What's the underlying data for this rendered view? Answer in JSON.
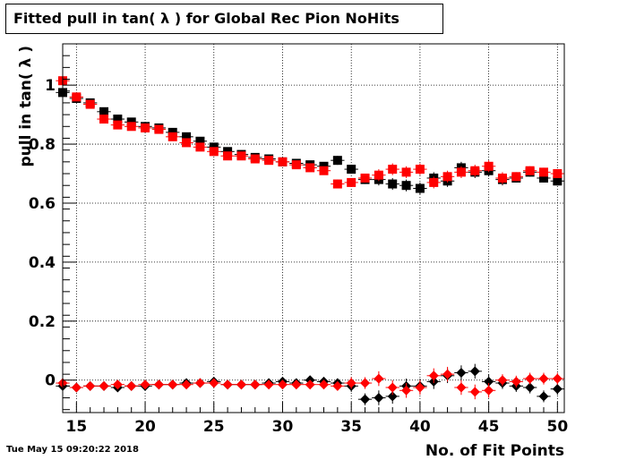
{
  "timestamp": "Tue May 15 09:20:22 2018",
  "chart_data": {
    "type": "scatter",
    "title": "Fitted pull in tan( λ ) for Global Rec Pion NoHits",
    "xlabel": "No. of Fit Points",
    "ylabel": "pull in tan( λ )",
    "xlim": [
      14,
      50.5
    ],
    "ylim": [
      -0.11,
      1.14
    ],
    "xticks": [
      15,
      20,
      25,
      30,
      35,
      40,
      45,
      50
    ],
    "yticks": [
      0,
      0.2,
      0.4,
      0.6,
      0.8,
      1
    ],
    "ytick_labels": [
      "0",
      "0.2",
      "0.4",
      "0.6",
      "0.8",
      "1"
    ],
    "grid": true,
    "x": [
      14,
      15,
      16,
      17,
      18,
      19,
      20,
      21,
      22,
      23,
      24,
      25,
      26,
      27,
      28,
      29,
      30,
      31,
      32,
      33,
      34,
      35,
      36,
      37,
      38,
      39,
      40,
      41,
      42,
      43,
      44,
      45,
      46,
      47,
      48,
      49,
      50
    ],
    "series": [
      {
        "marker": "square",
        "color": "#000000",
        "values": [
          0.975,
          0.955,
          0.94,
          0.91,
          0.885,
          0.875,
          0.86,
          0.855,
          0.84,
          0.825,
          0.81,
          0.79,
          0.775,
          0.765,
          0.755,
          0.75,
          0.74,
          0.735,
          0.73,
          0.725,
          0.745,
          0.715,
          0.68,
          0.68,
          0.665,
          0.66,
          0.65,
          0.685,
          0.675,
          0.72,
          0.705,
          0.71,
          0.68,
          0.685,
          0.705,
          0.685,
          0.675
        ],
        "yerr": [
          0.008,
          0.008,
          0.008,
          0.008,
          0.008,
          0.008,
          0.008,
          0.008,
          0.008,
          0.008,
          0.008,
          0.008,
          0.008,
          0.008,
          0.008,
          0.008,
          0.008,
          0.01,
          0.01,
          0.01,
          0.015,
          0.015,
          0.015,
          0.02,
          0.02,
          0.02,
          0.02,
          0.02,
          0.02,
          0.02,
          0.02,
          0.02,
          0.02,
          0.015,
          0.015,
          0.015,
          0.015
        ]
      },
      {
        "marker": "square",
        "color": "#ff0000",
        "values": [
          1.015,
          0.96,
          0.935,
          0.885,
          0.865,
          0.86,
          0.855,
          0.85,
          0.825,
          0.805,
          0.79,
          0.775,
          0.76,
          0.76,
          0.75,
          0.745,
          0.74,
          0.73,
          0.72,
          0.71,
          0.665,
          0.67,
          0.685,
          0.695,
          0.715,
          0.705,
          0.715,
          0.67,
          0.69,
          0.705,
          0.71,
          0.725,
          0.685,
          0.69,
          0.71,
          0.705,
          0.7
        ],
        "yerr": [
          0.008,
          0.008,
          0.008,
          0.008,
          0.008,
          0.008,
          0.008,
          0.008,
          0.008,
          0.008,
          0.008,
          0.008,
          0.008,
          0.008,
          0.008,
          0.008,
          0.008,
          0.01,
          0.01,
          0.01,
          0.015,
          0.015,
          0.015,
          0.02,
          0.02,
          0.02,
          0.02,
          0.02,
          0.02,
          0.02,
          0.02,
          0.02,
          0.02,
          0.015,
          0.015,
          0.015,
          0.015
        ]
      },
      {
        "marker": "diamond",
        "color": "#000000",
        "values": [
          -0.02,
          -0.025,
          -0.02,
          -0.02,
          -0.025,
          -0.02,
          -0.02,
          -0.015,
          -0.015,
          -0.01,
          -0.01,
          -0.005,
          -0.015,
          -0.015,
          -0.015,
          -0.01,
          -0.005,
          -0.01,
          0,
          -0.005,
          -0.01,
          -0.02,
          -0.065,
          -0.06,
          -0.055,
          -0.02,
          -0.02,
          -0.005,
          0.015,
          0.025,
          0.03,
          -0.005,
          -0.01,
          -0.02,
          -0.025,
          -0.055,
          -0.03
        ],
        "yerr": [
          0.01,
          0.01,
          0.01,
          0.01,
          0.01,
          0.01,
          0.01,
          0.01,
          0.01,
          0.01,
          0.01,
          0.01,
          0.01,
          0.01,
          0.01,
          0.01,
          0.012,
          0.012,
          0.012,
          0.015,
          0.015,
          0.02,
          0.02,
          0.025,
          0.025,
          0.025,
          0.025,
          0.025,
          0.025,
          0.025,
          0.025,
          0.025,
          0.02,
          0.02,
          0.02,
          0.02,
          0.02
        ]
      },
      {
        "marker": "diamond",
        "color": "#ff0000",
        "values": [
          -0.01,
          -0.025,
          -0.02,
          -0.02,
          -0.015,
          -0.02,
          -0.015,
          -0.015,
          -0.015,
          -0.015,
          -0.01,
          -0.01,
          -0.015,
          -0.015,
          -0.015,
          -0.015,
          -0.015,
          -0.015,
          -0.015,
          -0.015,
          -0.02,
          -0.01,
          -0.01,
          0.005,
          -0.025,
          -0.035,
          -0.025,
          0.015,
          0.02,
          -0.025,
          -0.04,
          -0.035,
          0,
          -0.005,
          0.005,
          0.005,
          0.005
        ],
        "yerr": [
          0.01,
          0.01,
          0.01,
          0.01,
          0.01,
          0.01,
          0.01,
          0.01,
          0.01,
          0.01,
          0.01,
          0.01,
          0.01,
          0.01,
          0.01,
          0.01,
          0.012,
          0.012,
          0.012,
          0.015,
          0.015,
          0.02,
          0.02,
          0.025,
          0.025,
          0.025,
          0.025,
          0.025,
          0.025,
          0.025,
          0.025,
          0.025,
          0.02,
          0.02,
          0.02,
          0.02,
          0.02
        ]
      }
    ]
  }
}
